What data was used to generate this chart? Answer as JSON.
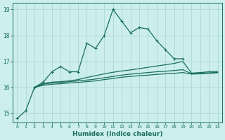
{
  "xlabel": "Humidex (Indice chaleur)",
  "x_main": [
    0,
    1,
    2,
    3,
    4,
    5,
    6,
    7,
    8,
    9,
    10,
    11,
    12,
    13,
    14,
    15,
    16,
    17,
    18,
    19
  ],
  "y_main": [
    14.8,
    15.1,
    16.0,
    16.2,
    16.6,
    16.8,
    16.6,
    16.6,
    17.7,
    17.5,
    18.0,
    19.0,
    18.55,
    18.1,
    18.3,
    18.25,
    17.8,
    17.45,
    17.1,
    17.1
  ],
  "x_line2": [
    2,
    3,
    4,
    5,
    6,
    7,
    8,
    9,
    10,
    11,
    12,
    13,
    14,
    15,
    16,
    17,
    18,
    19,
    20,
    21,
    22,
    23
  ],
  "y_line2": [
    16.0,
    16.15,
    16.2,
    16.22,
    16.25,
    16.3,
    16.38,
    16.45,
    16.52,
    16.58,
    16.63,
    16.67,
    16.72,
    16.77,
    16.82,
    16.87,
    16.92,
    17.0,
    16.55,
    16.57,
    16.6,
    16.62
  ],
  "x_line3": [
    2,
    3,
    4,
    5,
    6,
    7,
    8,
    9,
    10,
    11,
    12,
    13,
    14,
    15,
    16,
    17,
    18,
    19,
    20,
    21,
    22,
    23
  ],
  "y_line3": [
    16.0,
    16.12,
    16.17,
    16.19,
    16.22,
    16.25,
    16.28,
    16.32,
    16.37,
    16.42,
    16.47,
    16.51,
    16.54,
    16.57,
    16.6,
    16.62,
    16.65,
    16.68,
    16.52,
    16.54,
    16.56,
    16.58
  ],
  "x_line4": [
    2,
    3,
    4,
    5,
    6,
    7,
    8,
    9,
    10,
    11,
    12,
    13,
    14,
    15,
    16,
    17,
    18,
    19,
    20,
    21,
    22,
    23
  ],
  "y_line4": [
    16.0,
    16.08,
    16.12,
    16.14,
    16.17,
    16.19,
    16.22,
    16.25,
    16.3,
    16.34,
    16.39,
    16.42,
    16.45,
    16.47,
    16.5,
    16.52,
    16.54,
    16.57,
    16.51,
    16.52,
    16.54,
    16.56
  ],
  "ylim": [
    14.65,
    19.25
  ],
  "yticks": [
    15,
    16,
    17,
    18,
    19
  ],
  "xticks": [
    0,
    1,
    2,
    3,
    4,
    5,
    6,
    7,
    8,
    9,
    10,
    11,
    12,
    13,
    14,
    15,
    16,
    17,
    18,
    19,
    20,
    21,
    22,
    23
  ],
  "bg_color": "#cceeed",
  "grid_color": "#aad8d6",
  "line_color": "#1a6e60",
  "line_width": 0.9
}
